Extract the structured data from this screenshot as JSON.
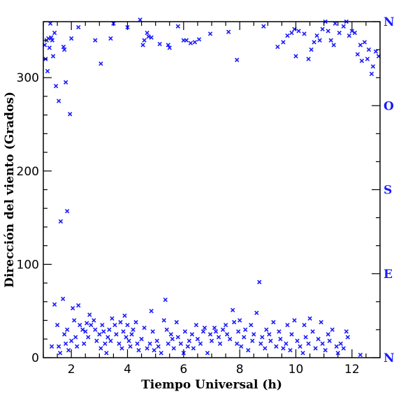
{
  "chart_data": {
    "type": "scatter",
    "xlabel": "Tiempo Universal (h)",
    "ylabel": "Dirección del viento (Grados)",
    "xlim": [
      1.0,
      13.0
    ],
    "ylim": [
      0,
      360
    ],
    "x_ticks": [
      2,
      4,
      6,
      8,
      10,
      12
    ],
    "x_tick_labels": [
      "2",
      "4",
      "6",
      "8",
      "10",
      "12"
    ],
    "y_ticks": [
      0,
      100,
      200,
      300
    ],
    "y_tick_labels": [
      "0",
      "100",
      "200",
      "300"
    ],
    "right_axis_labels": [
      {
        "value": 360,
        "label": "N"
      },
      {
        "value": 270,
        "label": "O"
      },
      {
        "value": 180,
        "label": "S"
      },
      {
        "value": 90,
        "label": "E"
      },
      {
        "value": 0,
        "label": "N"
      }
    ],
    "grid": false,
    "marker": "x",
    "marker_color": "#1a1aff",
    "points": [
      [
        1.05,
        335
      ],
      [
        1.08,
        320
      ],
      [
        1.12,
        340
      ],
      [
        1.15,
        307
      ],
      [
        1.18,
        342
      ],
      [
        1.22,
        332
      ],
      [
        1.25,
        358
      ],
      [
        1.28,
        343
      ],
      [
        1.32,
        340
      ],
      [
        1.35,
        323
      ],
      [
        1.4,
        348
      ],
      [
        1.45,
        291
      ],
      [
        1.55,
        275
      ],
      [
        1.62,
        146
      ],
      [
        1.72,
        333
      ],
      [
        1.75,
        330
      ],
      [
        1.8,
        295
      ],
      [
        1.85,
        157
      ],
      [
        1.95,
        261
      ],
      [
        2.0,
        342
      ],
      [
        2.25,
        354
      ],
      [
        2.85,
        340
      ],
      [
        3.05,
        315
      ],
      [
        3.4,
        342
      ],
      [
        3.5,
        358
      ],
      [
        4.0,
        354
      ],
      [
        4.45,
        362
      ],
      [
        4.55,
        335
      ],
      [
        4.6,
        340
      ],
      [
        4.7,
        348
      ],
      [
        4.75,
        344
      ],
      [
        4.85,
        343
      ],
      [
        5.15,
        336
      ],
      [
        5.45,
        335
      ],
      [
        5.5,
        332
      ],
      [
        5.8,
        355
      ],
      [
        6.0,
        340
      ],
      [
        6.1,
        340
      ],
      [
        6.25,
        337
      ],
      [
        6.4,
        338
      ],
      [
        6.55,
        341
      ],
      [
        6.95,
        347
      ],
      [
        7.6,
        349
      ],
      [
        7.9,
        319
      ],
      [
        8.85,
        355
      ],
      [
        9.35,
        333
      ],
      [
        9.55,
        338
      ],
      [
        9.7,
        345
      ],
      [
        9.85,
        348
      ],
      [
        9.95,
        352
      ],
      [
        10.0,
        323
      ],
      [
        10.1,
        350
      ],
      [
        10.3,
        347
      ],
      [
        10.45,
        320
      ],
      [
        10.55,
        330
      ],
      [
        10.65,
        338
      ],
      [
        10.75,
        345
      ],
      [
        10.85,
        340
      ],
      [
        10.95,
        352
      ],
      [
        11.05,
        360
      ],
      [
        11.15,
        350
      ],
      [
        11.25,
        340
      ],
      [
        11.35,
        335
      ],
      [
        11.4,
        358
      ],
      [
        11.55,
        348
      ],
      [
        11.7,
        355
      ],
      [
        11.8,
        360
      ],
      [
        11.9,
        345
      ],
      [
        12.0,
        350
      ],
      [
        12.1,
        348
      ],
      [
        12.2,
        325
      ],
      [
        12.3,
        335
      ],
      [
        12.35,
        318
      ],
      [
        12.45,
        338
      ],
      [
        12.55,
        320
      ],
      [
        12.6,
        330
      ],
      [
        12.7,
        304
      ],
      [
        12.75,
        312
      ],
      [
        12.85,
        328
      ],
      [
        12.95,
        323
      ],
      [
        1.3,
        12
      ],
      [
        1.4,
        57
      ],
      [
        1.5,
        35
      ],
      [
        1.55,
        12
      ],
      [
        1.6,
        5
      ],
      [
        1.7,
        63
      ],
      [
        1.75,
        25
      ],
      [
        1.8,
        15
      ],
      [
        1.85,
        30
      ],
      [
        1.9,
        8
      ],
      [
        2.0,
        18
      ],
      [
        2.05,
        53
      ],
      [
        2.1,
        40
      ],
      [
        2.15,
        22
      ],
      [
        2.2,
        12
      ],
      [
        2.25,
        56
      ],
      [
        2.3,
        35
      ],
      [
        2.4,
        30
      ],
      [
        2.45,
        15
      ],
      [
        2.5,
        28
      ],
      [
        2.55,
        37
      ],
      [
        2.6,
        22
      ],
      [
        2.65,
        46
      ],
      [
        2.7,
        35
      ],
      [
        2.8,
        40
      ],
      [
        2.85,
        30
      ],
      [
        2.9,
        18
      ],
      [
        3.0,
        25
      ],
      [
        3.05,
        10
      ],
      [
        3.1,
        35
      ],
      [
        3.15,
        28
      ],
      [
        3.2,
        15
      ],
      [
        3.25,
        5
      ],
      [
        3.3,
        22
      ],
      [
        3.35,
        30
      ],
      [
        3.4,
        18
      ],
      [
        3.45,
        42
      ],
      [
        3.55,
        35
      ],
      [
        3.6,
        25
      ],
      [
        3.7,
        15
      ],
      [
        3.75,
        38
      ],
      [
        3.8,
        10
      ],
      [
        3.85,
        28
      ],
      [
        3.9,
        45
      ],
      [
        3.95,
        22
      ],
      [
        4.0,
        35
      ],
      [
        4.05,
        18
      ],
      [
        4.1,
        12
      ],
      [
        4.15,
        25
      ],
      [
        4.2,
        30
      ],
      [
        4.3,
        38
      ],
      [
        4.35,
        15
      ],
      [
        4.4,
        8
      ],
      [
        4.5,
        20
      ],
      [
        4.6,
        32
      ],
      [
        4.7,
        10
      ],
      [
        4.8,
        15
      ],
      [
        4.85,
        50
      ],
      [
        4.9,
        28
      ],
      [
        4.95,
        8
      ],
      [
        5.05,
        18
      ],
      [
        5.1,
        12
      ],
      [
        5.2,
        5
      ],
      [
        5.3,
        40
      ],
      [
        5.35,
        62
      ],
      [
        5.4,
        30
      ],
      [
        5.45,
        15
      ],
      [
        5.55,
        25
      ],
      [
        5.6,
        20
      ],
      [
        5.65,
        10
      ],
      [
        5.75,
        38
      ],
      [
        5.8,
        22
      ],
      [
        5.9,
        15
      ],
      [
        6.0,
        5
      ],
      [
        6.05,
        28
      ],
      [
        6.15,
        12
      ],
      [
        6.2,
        18
      ],
      [
        6.3,
        25
      ],
      [
        6.35,
        10
      ],
      [
        6.45,
        35
      ],
      [
        6.5,
        20
      ],
      [
        6.6,
        15
      ],
      [
        6.7,
        28
      ],
      [
        6.75,
        32
      ],
      [
        6.85,
        5
      ],
      [
        6.95,
        25
      ],
      [
        7.0,
        18
      ],
      [
        7.1,
        32
      ],
      [
        7.15,
        28
      ],
      [
        7.25,
        22
      ],
      [
        7.3,
        15
      ],
      [
        7.4,
        30
      ],
      [
        7.5,
        35
      ],
      [
        7.55,
        25
      ],
      [
        7.65,
        20
      ],
      [
        7.75,
        51
      ],
      [
        7.8,
        38
      ],
      [
        7.9,
        15
      ],
      [
        7.95,
        28
      ],
      [
        8.0,
        40
      ],
      [
        8.05,
        12
      ],
      [
        8.15,
        22
      ],
      [
        8.2,
        30
      ],
      [
        8.3,
        8
      ],
      [
        8.4,
        35
      ],
      [
        8.45,
        18
      ],
      [
        8.5,
        25
      ],
      [
        8.6,
        48
      ],
      [
        8.7,
        81
      ],
      [
        8.75,
        15
      ],
      [
        8.8,
        22
      ],
      [
        8.9,
        10
      ],
      [
        8.95,
        30
      ],
      [
        9.05,
        25
      ],
      [
        9.1,
        18
      ],
      [
        9.2,
        38
      ],
      [
        9.3,
        12
      ],
      [
        9.4,
        28
      ],
      [
        9.45,
        20
      ],
      [
        9.55,
        10
      ],
      [
        9.65,
        15
      ],
      [
        9.7,
        35
      ],
      [
        9.8,
        8
      ],
      [
        9.85,
        25
      ],
      [
        9.95,
        40
      ],
      [
        10.05,
        18
      ],
      [
        10.15,
        12
      ],
      [
        10.25,
        5
      ],
      [
        10.3,
        35
      ],
      [
        10.35,
        22
      ],
      [
        10.45,
        15
      ],
      [
        10.5,
        42
      ],
      [
        10.6,
        28
      ],
      [
        10.7,
        10
      ],
      [
        10.8,
        20
      ],
      [
        10.9,
        38
      ],
      [
        10.95,
        15
      ],
      [
        11.05,
        8
      ],
      [
        11.15,
        25
      ],
      [
        11.2,
        18
      ],
      [
        11.3,
        30
      ],
      [
        11.45,
        12
      ],
      [
        11.5,
        5
      ],
      [
        11.6,
        15
      ],
      [
        11.7,
        10
      ],
      [
        11.8,
        28
      ],
      [
        11.85,
        22
      ],
      [
        12.3,
        3
      ]
    ]
  }
}
